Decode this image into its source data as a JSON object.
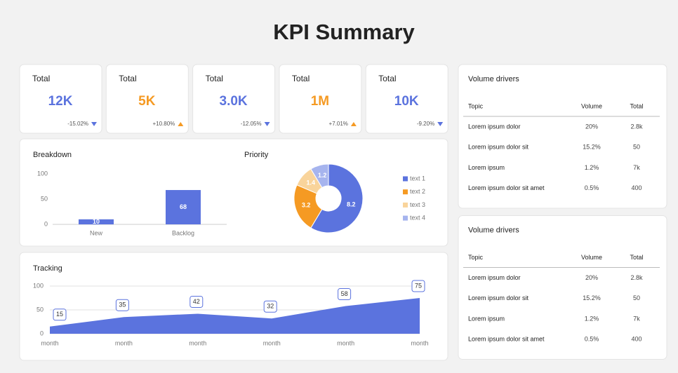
{
  "title": "KPI Summary",
  "kpis": [
    {
      "label": "Total",
      "value": "12K",
      "change": "-15.02%",
      "trend": "down",
      "color": "#5b73de"
    },
    {
      "label": "Total",
      "value": "5K",
      "change": "+10.80%",
      "trend": "up",
      "color": "#f59a23"
    },
    {
      "label": "Total",
      "value": "3.0K",
      "change": "-12.05%",
      "trend": "down",
      "color": "#5b73de"
    },
    {
      "label": "Total",
      "value": "1M",
      "change": "+7.01%",
      "trend": "up",
      "color": "#f59a23"
    },
    {
      "label": "Total",
      "value": "10K",
      "change": "-9.20%",
      "trend": "down",
      "color": "#5b73de"
    }
  ],
  "chart_data": [
    {
      "type": "bar",
      "title": "Breakdown",
      "categories": [
        "New",
        "Backlog"
      ],
      "values": [
        10,
        68
      ],
      "color": "#5b73de",
      "ylim": [
        0,
        100
      ],
      "yticks": [
        0,
        50,
        100
      ],
      "grid": false
    },
    {
      "type": "pie",
      "title": "Priority",
      "categories": [
        "text 1",
        "text 2",
        "text 3",
        "text 4"
      ],
      "values": [
        8.2,
        3.2,
        1.4,
        1.2
      ],
      "colors": [
        "#5b73de",
        "#f59a23",
        "#f9d49b",
        "#a6b4ee"
      ],
      "legend": "right"
    },
    {
      "type": "area",
      "title": "Tracking",
      "categories": [
        "month",
        "month",
        "month",
        "month",
        "month",
        "month"
      ],
      "values": [
        15,
        35,
        42,
        32,
        58,
        75
      ],
      "color": "#5b73de",
      "ylim": [
        0,
        100
      ],
      "yticks": [
        0,
        50,
        100
      ],
      "grid": true
    }
  ],
  "tables": [
    {
      "title": "Volume drivers",
      "header": [
        "Topic",
        "Volume",
        "Total"
      ],
      "rows": [
        [
          "Lorem ipsum dolor",
          "20%",
          "2.8k"
        ],
        [
          "Lorem ipsum dolor sit",
          "15.2%",
          "50"
        ],
        [
          "Lorem ipsum",
          "1.2%",
          "7k"
        ],
        [
          "Lorem ipsum dolor sit amet",
          "0.5%",
          "400"
        ]
      ]
    },
    {
      "title": "Volume drivers",
      "header": [
        "Topic",
        "Volume",
        "Total"
      ],
      "rows": [
        [
          "Lorem ipsum dolor",
          "20%",
          "2.8k"
        ],
        [
          "Lorem ipsum dolor sit",
          "15.2%",
          "50"
        ],
        [
          "Lorem ipsum",
          "1.2%",
          "7k"
        ],
        [
          "Lorem ipsum dolor sit amet",
          "0.5%",
          "400"
        ]
      ]
    }
  ]
}
